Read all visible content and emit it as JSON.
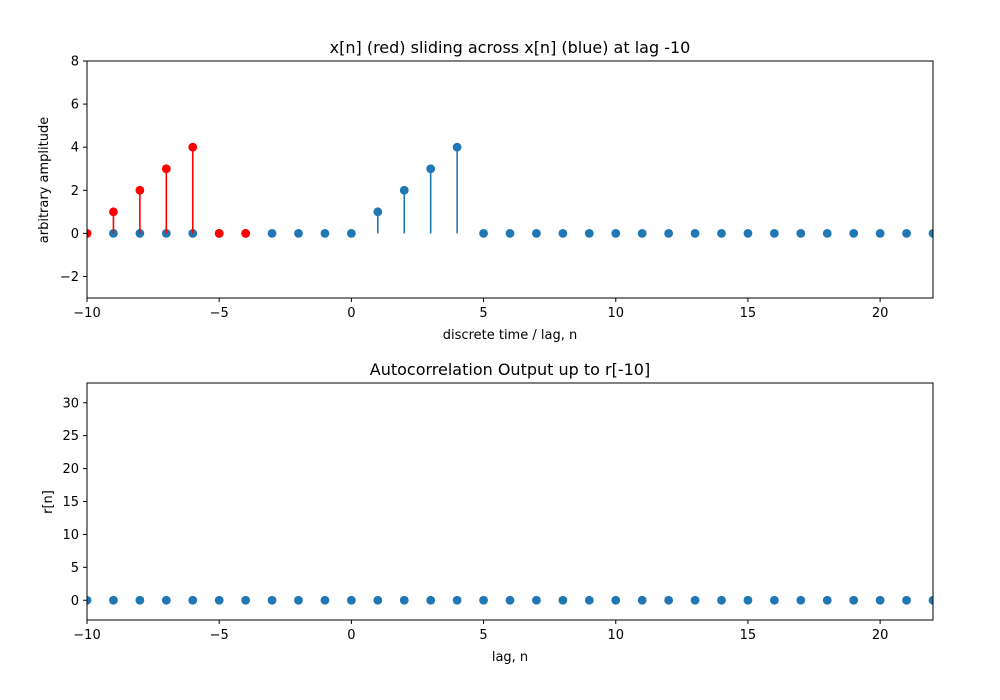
{
  "colors": {
    "blue": "#1f77b4",
    "red": "#ff0000",
    "axes": "#000000"
  },
  "chart_data": [
    {
      "type": "stem",
      "title": "x[n] (red) sliding across x[n] (blue) at lag -10",
      "xlabel": "discrete time / lag, n",
      "ylabel": "arbitrary amplitude",
      "xlim": [
        -10,
        22
      ],
      "ylim": [
        -3,
        8
      ],
      "xticks": [
        -10,
        -5,
        0,
        5,
        10,
        15,
        20
      ],
      "yticks": [
        -2,
        0,
        2,
        4,
        6,
        8
      ],
      "grid": false,
      "series": [
        {
          "color": "#1f77b4",
          "x": [
            -10,
            -9,
            -8,
            -7,
            -6,
            -5,
            -4,
            -3,
            -2,
            -1,
            0,
            1,
            2,
            3,
            4,
            5,
            6,
            7,
            8,
            9,
            10,
            11,
            12,
            13,
            14,
            15,
            16,
            17,
            18,
            19,
            20,
            21,
            22
          ],
          "y": [
            0,
            0,
            0,
            0,
            0,
            0,
            0,
            0,
            0,
            0,
            0,
            1,
            2,
            3,
            4,
            0,
            0,
            0,
            0,
            0,
            0,
            0,
            0,
            0,
            0,
            0,
            0,
            0,
            0,
            0,
            0,
            0,
            0
          ]
        },
        {
          "color": "#ff0000",
          "x": [
            -10,
            -9,
            -8,
            -7,
            -6,
            -5,
            -4
          ],
          "y": [
            0,
            1,
            2,
            3,
            4,
            0,
            0
          ]
        }
      ]
    },
    {
      "type": "stem",
      "title": "Autocorrelation Output up to r[-10]",
      "xlabel": "lag, n",
      "ylabel": "r[n]",
      "xlim": [
        -10,
        22
      ],
      "ylim": [
        -3,
        33
      ],
      "xticks": [
        -10,
        -5,
        0,
        5,
        10,
        15,
        20
      ],
      "yticks": [
        0,
        5,
        10,
        15,
        20,
        25,
        30
      ],
      "grid": false,
      "series": [
        {
          "color": "#1f77b4",
          "x": [
            -10,
            -9,
            -8,
            -7,
            -6,
            -5,
            -4,
            -3,
            -2,
            -1,
            0,
            1,
            2,
            3,
            4,
            5,
            6,
            7,
            8,
            9,
            10,
            11,
            12,
            13,
            14,
            15,
            16,
            17,
            18,
            19,
            20,
            21,
            22
          ],
          "y": [
            0,
            0,
            0,
            0,
            0,
            0,
            0,
            0,
            0,
            0,
            0,
            0,
            0,
            0,
            0,
            0,
            0,
            0,
            0,
            0,
            0,
            0,
            0,
            0,
            0,
            0,
            0,
            0,
            0,
            0,
            0,
            0,
            0
          ]
        }
      ]
    }
  ]
}
